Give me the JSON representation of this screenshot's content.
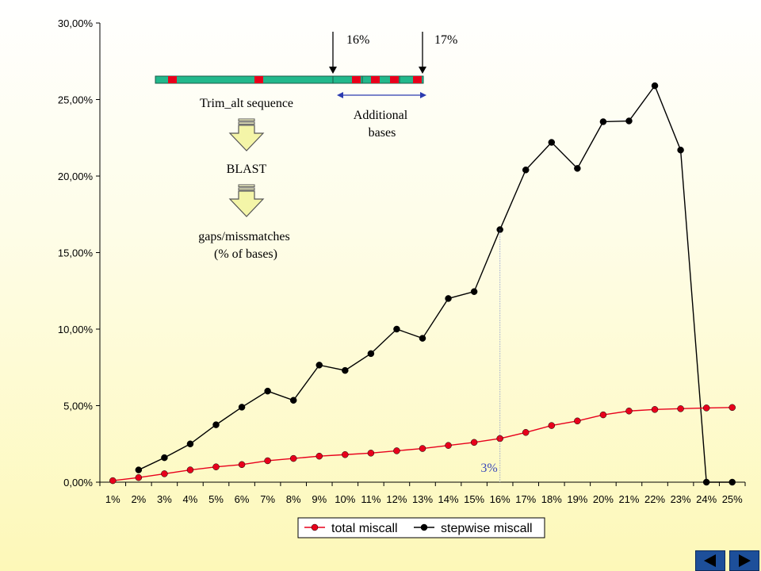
{
  "chart_data": {
    "type": "line",
    "categories": [
      "1%",
      "2%",
      "3%",
      "4%",
      "5%",
      "6%",
      "7%",
      "8%",
      "9%",
      "10%",
      "11%",
      "12%",
      "13%",
      "14%",
      "15%",
      "16%",
      "17%",
      "18%",
      "19%",
      "20%",
      "21%",
      "22%",
      "23%",
      "24%",
      "25%"
    ],
    "y_ticks": [
      "0,00%",
      "5,00%",
      "10,00%",
      "15,00%",
      "20,00%",
      "25,00%",
      "30,00%"
    ],
    "ylim": [
      0,
      30
    ],
    "series": [
      {
        "name": "total miscall",
        "color": "#e8001c",
        "values": [
          0.1,
          0.3,
          0.55,
          0.8,
          1.0,
          1.15,
          1.4,
          1.55,
          1.7,
          1.8,
          1.9,
          2.05,
          2.2,
          2.4,
          2.6,
          2.85,
          3.25,
          3.7,
          4.0,
          4.4,
          4.65,
          4.75,
          4.8,
          4.85,
          4.88
        ]
      },
      {
        "name": "stepwise miscall",
        "color": "#000000",
        "values": [
          null,
          0.8,
          1.6,
          2.5,
          3.75,
          4.9,
          5.95,
          5.35,
          7.65,
          7.3,
          8.4,
          10.0,
          9.4,
          12.0,
          12.45,
          16.5,
          20.4,
          22.2,
          20.5,
          23.55,
          23.6,
          25.9,
          21.7,
          0.0,
          0.0
        ]
      }
    ],
    "legend_position": "bottom",
    "grid": false
  },
  "annotations": {
    "label_16": "16%",
    "label_17": "17%",
    "additional_bases": [
      "Additional",
      "bases"
    ],
    "trim_alt": "Trim_alt sequence",
    "blast": "BLAST",
    "gaps": [
      "gaps/missmatches",
      "(% of bases)"
    ],
    "marker_3": "3%"
  },
  "nav": {
    "prev_icon": "triangle-left",
    "next_icon": "triangle-right"
  }
}
